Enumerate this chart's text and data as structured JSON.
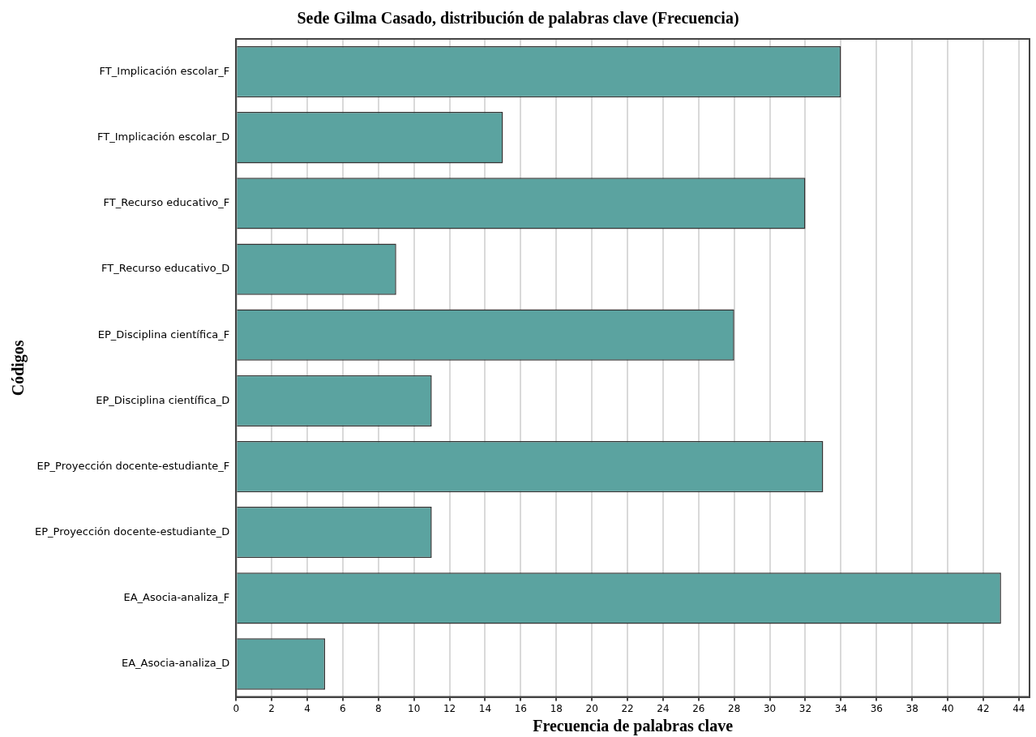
{
  "chart_data": {
    "type": "bar",
    "orientation": "horizontal",
    "title": "Sede Gilma Casado, distribución de palabras clave (Frecuencia)",
    "xlabel": "Frecuencia de palabras clave",
    "ylabel": "Códigos",
    "categories": [
      "FT_Implicación escolar_F",
      "FT_Implicación escolar_D",
      "FT_Recurso educativo_F",
      "FT_Recurso educativo_D",
      "EP_Disciplina científica_F",
      "EP_Disciplina científica_D",
      "EP_Proyección docente-estudiante_F",
      "EP_Proyección docente-estudiante_D",
      "EA_Asocia-analiza_F",
      "EA_Asocia-analiza_D"
    ],
    "values": [
      34,
      15,
      32,
      9,
      28,
      11,
      33,
      11,
      43,
      5
    ],
    "color": "#5ba3a0",
    "xlim": [
      0,
      44.6
    ],
    "xticks": [
      0,
      2,
      4,
      6,
      8,
      10,
      12,
      14,
      16,
      18,
      20,
      22,
      24,
      26,
      28,
      30,
      32,
      34,
      36,
      38,
      40,
      42,
      44
    ],
    "grid": "x",
    "legend": false
  }
}
